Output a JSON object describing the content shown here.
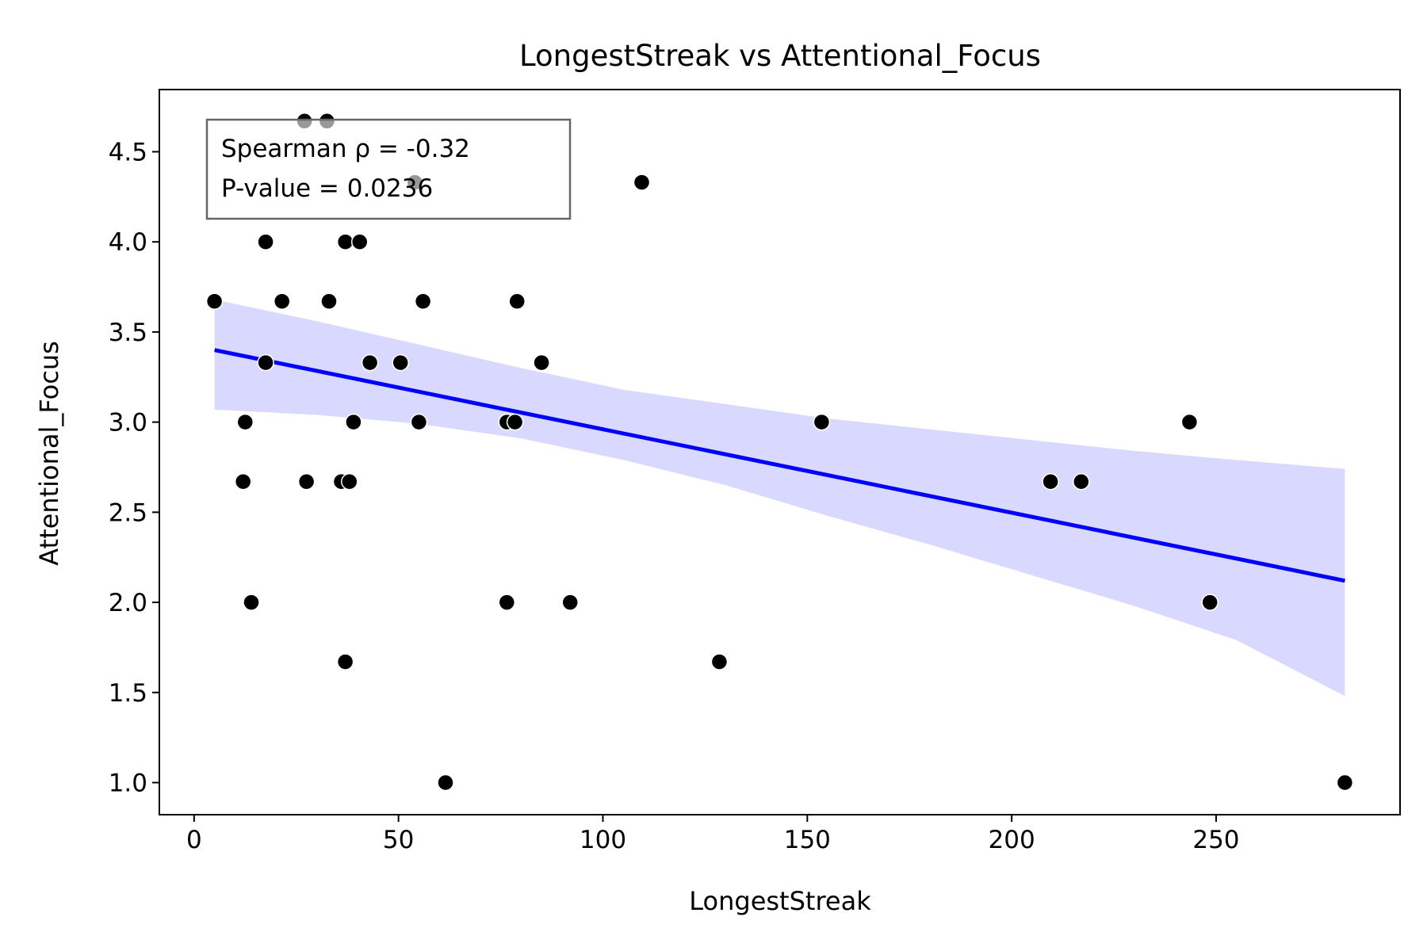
{
  "chart_data": {
    "type": "scatter",
    "title": "LongestStreak vs Attentional_Focus",
    "xlabel": "LongestStreak",
    "ylabel": "Attentional_Focus",
    "xlim": [
      -8.5,
      295
    ],
    "ylim": [
      0.822,
      4.845
    ],
    "xticks": [
      0,
      50,
      100,
      150,
      200,
      250
    ],
    "yticks": [
      1.0,
      1.5,
      2.0,
      2.5,
      3.0,
      3.5,
      4.0,
      4.5
    ],
    "grid": false,
    "points": [
      {
        "x": 5,
        "y": 3.67
      },
      {
        "x": 12,
        "y": 2.67
      },
      {
        "x": 12.5,
        "y": 3.0
      },
      {
        "x": 14,
        "y": 2.0
      },
      {
        "x": 17.5,
        "y": 4.0
      },
      {
        "x": 17.5,
        "y": 3.33
      },
      {
        "x": 21.5,
        "y": 3.67
      },
      {
        "x": 27,
        "y": 4.67
      },
      {
        "x": 27.5,
        "y": 2.67
      },
      {
        "x": 32.5,
        "y": 4.67
      },
      {
        "x": 33,
        "y": 3.67
      },
      {
        "x": 36,
        "y": 2.67
      },
      {
        "x": 37,
        "y": 4.0
      },
      {
        "x": 37,
        "y": 1.67
      },
      {
        "x": 38,
        "y": 2.67
      },
      {
        "x": 39,
        "y": 3.0
      },
      {
        "x": 40.5,
        "y": 4.0
      },
      {
        "x": 43,
        "y": 3.33
      },
      {
        "x": 50.5,
        "y": 3.33
      },
      {
        "x": 54,
        "y": 4.33
      },
      {
        "x": 55,
        "y": 3.0
      },
      {
        "x": 56,
        "y": 3.67
      },
      {
        "x": 61.5,
        "y": 1.0
      },
      {
        "x": 76.5,
        "y": 3.0
      },
      {
        "x": 76.5,
        "y": 2.0
      },
      {
        "x": 78.5,
        "y": 3.0
      },
      {
        "x": 79,
        "y": 3.67
      },
      {
        "x": 85,
        "y": 3.33
      },
      {
        "x": 92,
        "y": 2.0
      },
      {
        "x": 109.5,
        "y": 4.33
      },
      {
        "x": 128.5,
        "y": 1.67
      },
      {
        "x": 153.5,
        "y": 3.0
      },
      {
        "x": 209.5,
        "y": 2.67
      },
      {
        "x": 217,
        "y": 2.67
      },
      {
        "x": 243.5,
        "y": 3.0
      },
      {
        "x": 248.5,
        "y": 2.0
      },
      {
        "x": 281.5,
        "y": 1.0
      }
    ],
    "regression_line": {
      "x": [
        5,
        281.5
      ],
      "y": [
        3.4,
        2.12
      ],
      "color": "#0000ff"
    },
    "confidence_band": {
      "x": [
        5,
        30,
        55,
        80,
        105,
        130,
        155,
        180,
        205,
        230,
        255,
        281.5
      ],
      "upper": [
        3.68,
        3.56,
        3.43,
        3.3,
        3.18,
        3.1,
        3.02,
        2.96,
        2.9,
        2.84,
        2.79,
        2.74
      ],
      "lower": [
        3.07,
        3.04,
        2.99,
        2.91,
        2.79,
        2.65,
        2.48,
        2.32,
        2.15,
        1.98,
        1.79,
        1.48
      ],
      "color": "#d9d9ff"
    },
    "annotation": {
      "lines": [
        "Spearman ρ = -0.32",
        "P-value = 0.0236"
      ],
      "placement": "top-left"
    },
    "point_color": "#000000",
    "point_edge_color": "#ffffff"
  }
}
